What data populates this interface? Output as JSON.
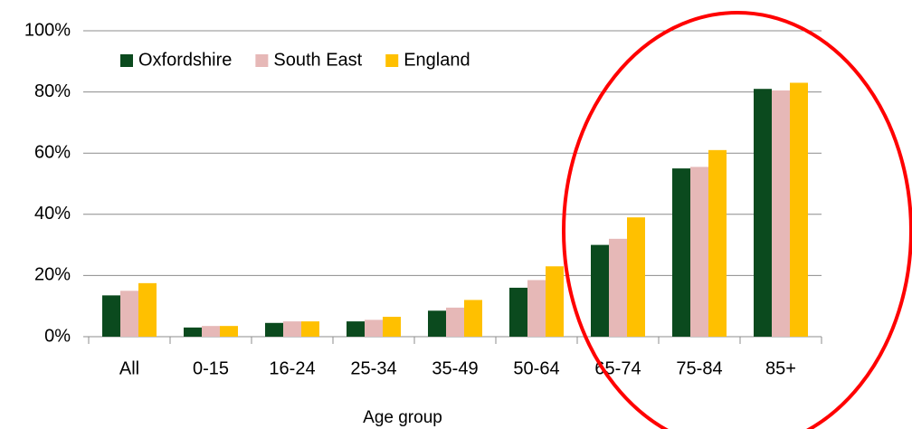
{
  "chart_data": {
    "type": "bar",
    "x_label": "Age group",
    "categories": [
      "All",
      "0-15",
      "16-24",
      "25-34",
      "35-49",
      "50-64",
      "65-74",
      "75-84",
      "85+"
    ],
    "series": [
      {
        "name": "Oxfordshire",
        "color": "#0b4a1e",
        "values": [
          13.5,
          3,
          4.5,
          5,
          8.5,
          16,
          30,
          55,
          81
        ]
      },
      {
        "name": "South East",
        "color": "#e6b8b7",
        "values": [
          15,
          3.5,
          5,
          5.5,
          9.5,
          18.5,
          32,
          55.5,
          80.5
        ]
      },
      {
        "name": "England",
        "color": "#ffc000",
        "values": [
          17.5,
          3.5,
          5,
          6.5,
          12,
          23,
          39,
          61,
          83
        ]
      }
    ],
    "ylim": [
      0,
      100
    ],
    "yticks": [
      {
        "value": 0,
        "label": "0%"
      },
      {
        "value": 20,
        "label": "20%"
      },
      {
        "value": 40,
        "label": "40%"
      },
      {
        "value": 60,
        "label": "60%"
      },
      {
        "value": 80,
        "label": "80%"
      },
      {
        "value": 100,
        "label": "100%"
      }
    ],
    "grid": true,
    "legend": "top-left"
  }
}
